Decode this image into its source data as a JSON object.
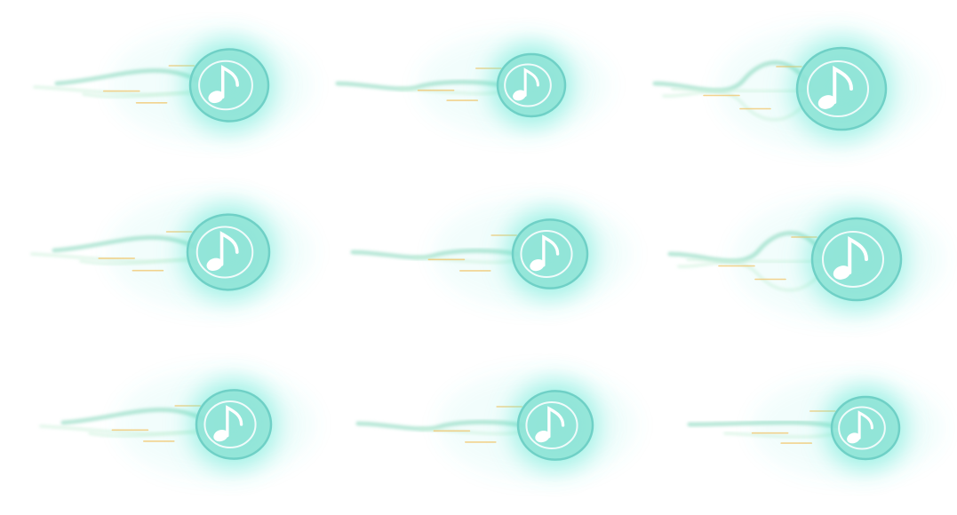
{
  "sprite_sheet": {
    "grid": {
      "columns": 3,
      "rows": 3
    },
    "colors": {
      "background": "#ffffff",
      "glow": "#5ee8d4",
      "glow_core": "#9ff3e6",
      "disc": "#8fe3d6",
      "disc_rim": "#6fd0c6",
      "note": "#ffffff",
      "tail": "#7fd6b8",
      "tail_light": "#c8f0d8",
      "spark": "#f2c46a"
    },
    "frames": [
      {
        "id": "frame-1",
        "icon": "music-note-icon"
      },
      {
        "id": "frame-2",
        "icon": "music-note-icon"
      },
      {
        "id": "frame-3",
        "icon": "music-note-icon"
      },
      {
        "id": "frame-4",
        "icon": "music-note-icon"
      },
      {
        "id": "frame-5",
        "icon": "music-note-icon"
      },
      {
        "id": "frame-6",
        "icon": "music-note-icon"
      },
      {
        "id": "frame-7",
        "icon": "music-note-icon"
      },
      {
        "id": "frame-8",
        "icon": "music-note-icon"
      },
      {
        "id": "frame-9",
        "icon": "music-note-icon"
      }
    ]
  }
}
